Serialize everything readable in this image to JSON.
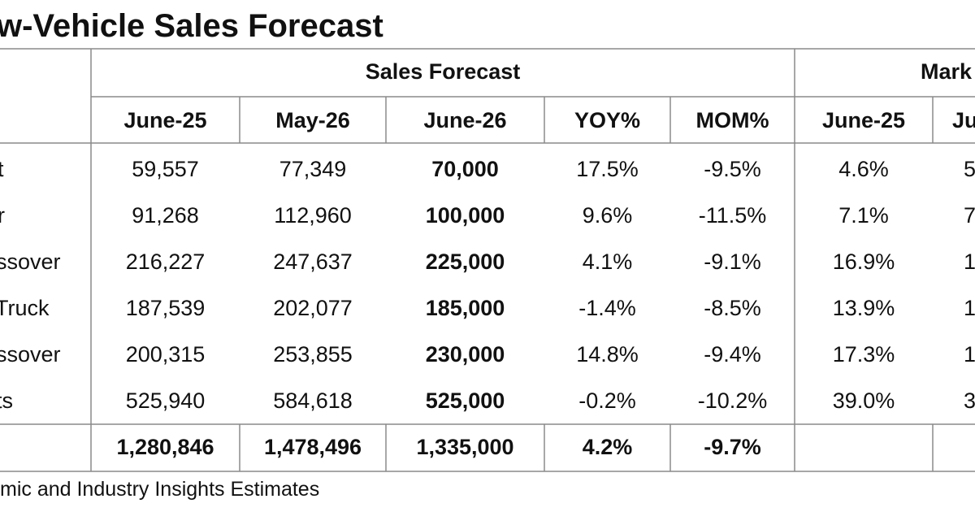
{
  "title": "w-Vehicle Sales Forecast",
  "source": "mic and Industry Insights Estimates",
  "chart_data": {
    "type": "table",
    "group_headers": [
      "Sales Forecast",
      "Mark"
    ],
    "columns": [
      "June-25",
      "May-26",
      "June-26",
      "YOY%",
      "MOM%",
      "June-25",
      "Ju"
    ],
    "rows": [
      {
        "label": "t",
        "cells": [
          "59,557",
          "77,349",
          "70,000",
          "17.5%",
          "-9.5%",
          "4.6%",
          "5"
        ]
      },
      {
        "label": "r",
        "cells": [
          "91,268",
          "112,960",
          "100,000",
          "9.6%",
          "-11.5%",
          "7.1%",
          "7"
        ]
      },
      {
        "label": "ssover",
        "cells": [
          "216,227",
          "247,637",
          "225,000",
          "4.1%",
          "-9.1%",
          "16.9%",
          "1"
        ]
      },
      {
        "label": "Truck",
        "cells": [
          "187,539",
          "202,077",
          "185,000",
          "-1.4%",
          "-8.5%",
          "13.9%",
          "1"
        ]
      },
      {
        "label": "ssover",
        "cells": [
          "200,315",
          "253,855",
          "230,000",
          "14.8%",
          "-9.4%",
          "17.3%",
          "1"
        ]
      },
      {
        "label": "ts",
        "cells": [
          "525,940",
          "584,618",
          "525,000",
          "-0.2%",
          "-10.2%",
          "39.0%",
          "3"
        ]
      }
    ],
    "total_row": {
      "label": "",
      "cells": [
        "1,280,846",
        "1,478,496",
        "1,335,000",
        "4.2%",
        "-9.7%",
        "",
        ""
      ]
    }
  }
}
